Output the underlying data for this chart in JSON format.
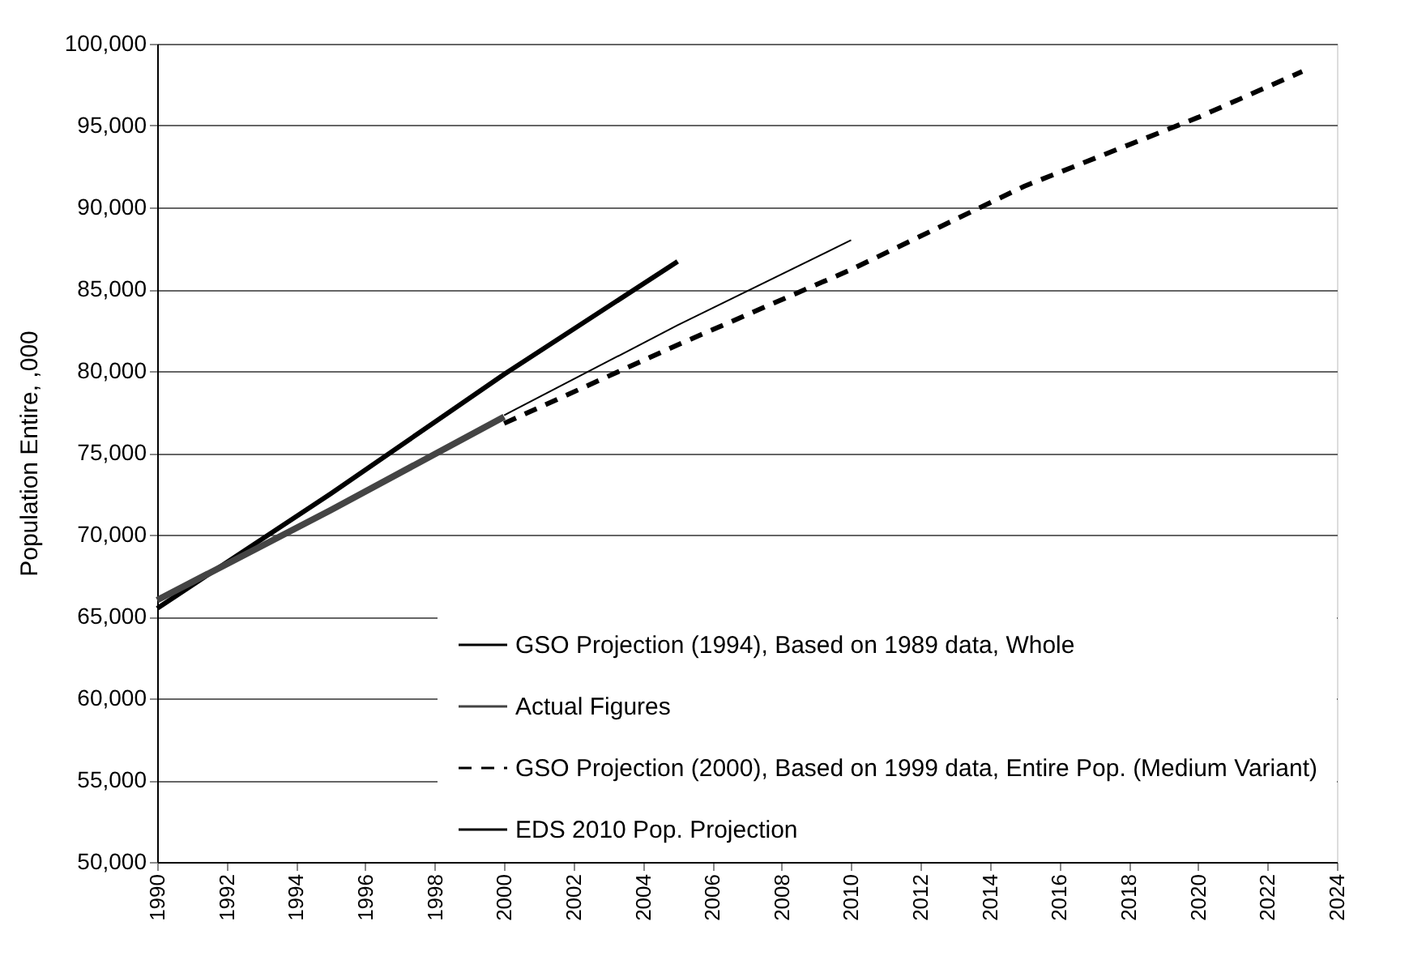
{
  "chart_data": {
    "type": "line",
    "ylabel": "Population Entire, ,000",
    "xlim": [
      1990,
      2024
    ],
    "xticks": [
      1990,
      1992,
      1994,
      1996,
      1998,
      2000,
      2002,
      2004,
      2006,
      2008,
      2010,
      2012,
      2014,
      2016,
      2018,
      2020,
      2022,
      2024
    ],
    "ylim": [
      50000,
      100000
    ],
    "yticks": [
      {
        "value": 50000,
        "label": "50,000"
      },
      {
        "value": 55000,
        "label": "55,000"
      },
      {
        "value": 60000,
        "label": "60,000"
      },
      {
        "value": 65000,
        "label": "65,000"
      },
      {
        "value": 70000,
        "label": "70,000"
      },
      {
        "value": 75000,
        "label": "75,000"
      },
      {
        "value": 80000,
        "label": "80,000"
      },
      {
        "value": 85000,
        "label": "85,000"
      },
      {
        "value": 90000,
        "label": "90,000"
      },
      {
        "value": 95000,
        "label": "95,000"
      },
      {
        "value": 100000,
        "label": "100,000"
      }
    ],
    "grid": "y",
    "legend": "bottom right",
    "series": [
      {
        "name": "GSO Projection (1994), Based on 1989 data, Whole",
        "color": "#000000",
        "line_style": "solid",
        "x": [
          1990,
          1995,
          2000,
          2005
        ],
        "values": [
          65500,
          72500,
          79800,
          86700
        ]
      },
      {
        "name": "Actual Figures",
        "color": "#444444",
        "line_style": "solid",
        "x": [
          1990,
          1995,
          2000
        ],
        "values": [
          66000,
          71500,
          77200
        ]
      },
      {
        "name": "GSO Projection (2000), Based on 1999 data, Entire Pop. (Medium Variant)",
        "color": "#000000",
        "line_style": "dashed",
        "x": [
          2000,
          2005,
          2010,
          2015,
          2020,
          2023
        ],
        "values": [
          76800,
          81600,
          86200,
          91300,
          95500,
          98300
        ]
      },
      {
        "name": "EDS 2010 Pop. Projection",
        "color": "#000000",
        "line_style": "solid",
        "x": [
          2000,
          2005,
          2010
        ],
        "values": [
          77300,
          82800,
          88000
        ]
      }
    ]
  }
}
